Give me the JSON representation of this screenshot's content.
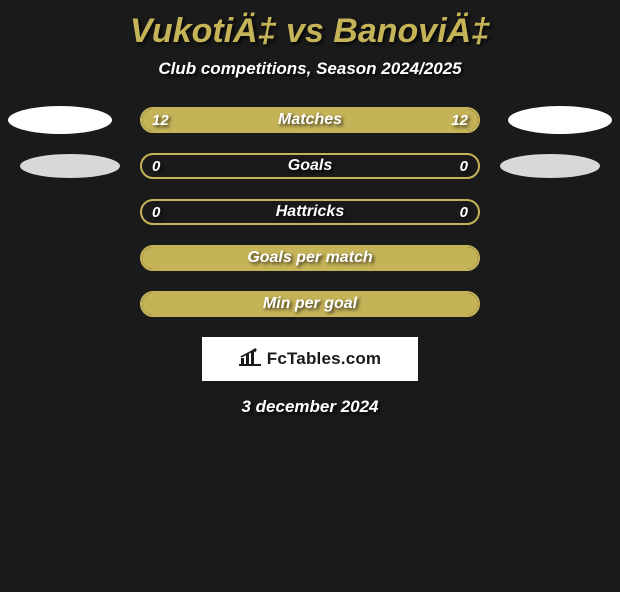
{
  "header": {
    "title": "VukotiÄ‡ vs BanoviÄ‡",
    "subtitle": "Club competitions, Season 2024/2025"
  },
  "rows": [
    {
      "label": "Matches",
      "left_value": "12",
      "right_value": "12",
      "left_fill_pct": 50,
      "right_fill_pct": 50,
      "show_left_ellipse": true,
      "show_right_ellipse": true,
      "left_ellipse_dim": false,
      "right_ellipse_dim": false
    },
    {
      "label": "Goals",
      "left_value": "0",
      "right_value": "0",
      "left_fill_pct": 0,
      "right_fill_pct": 0,
      "show_left_ellipse": true,
      "show_right_ellipse": true,
      "left_ellipse_dim": true,
      "right_ellipse_dim": true
    },
    {
      "label": "Hattricks",
      "left_value": "0",
      "right_value": "0",
      "left_fill_pct": 0,
      "right_fill_pct": 0,
      "show_left_ellipse": false,
      "show_right_ellipse": false
    },
    {
      "label": "Goals per match",
      "left_value": "",
      "right_value": "",
      "left_fill_pct": 100,
      "right_fill_pct": 0,
      "show_left_ellipse": false,
      "show_right_ellipse": false
    },
    {
      "label": "Min per goal",
      "left_value": "",
      "right_value": "",
      "left_fill_pct": 100,
      "right_fill_pct": 0,
      "show_left_ellipse": false,
      "show_right_ellipse": false
    }
  ],
  "footer": {
    "logo_text": "FcTables.com",
    "date": "3 december 2024"
  },
  "colors": {
    "background": "#1a1a1a",
    "accent": "#c5b358",
    "text": "#ffffff",
    "ellipse_bright": "#ffffff",
    "ellipse_dim": "#d8d8d8"
  }
}
